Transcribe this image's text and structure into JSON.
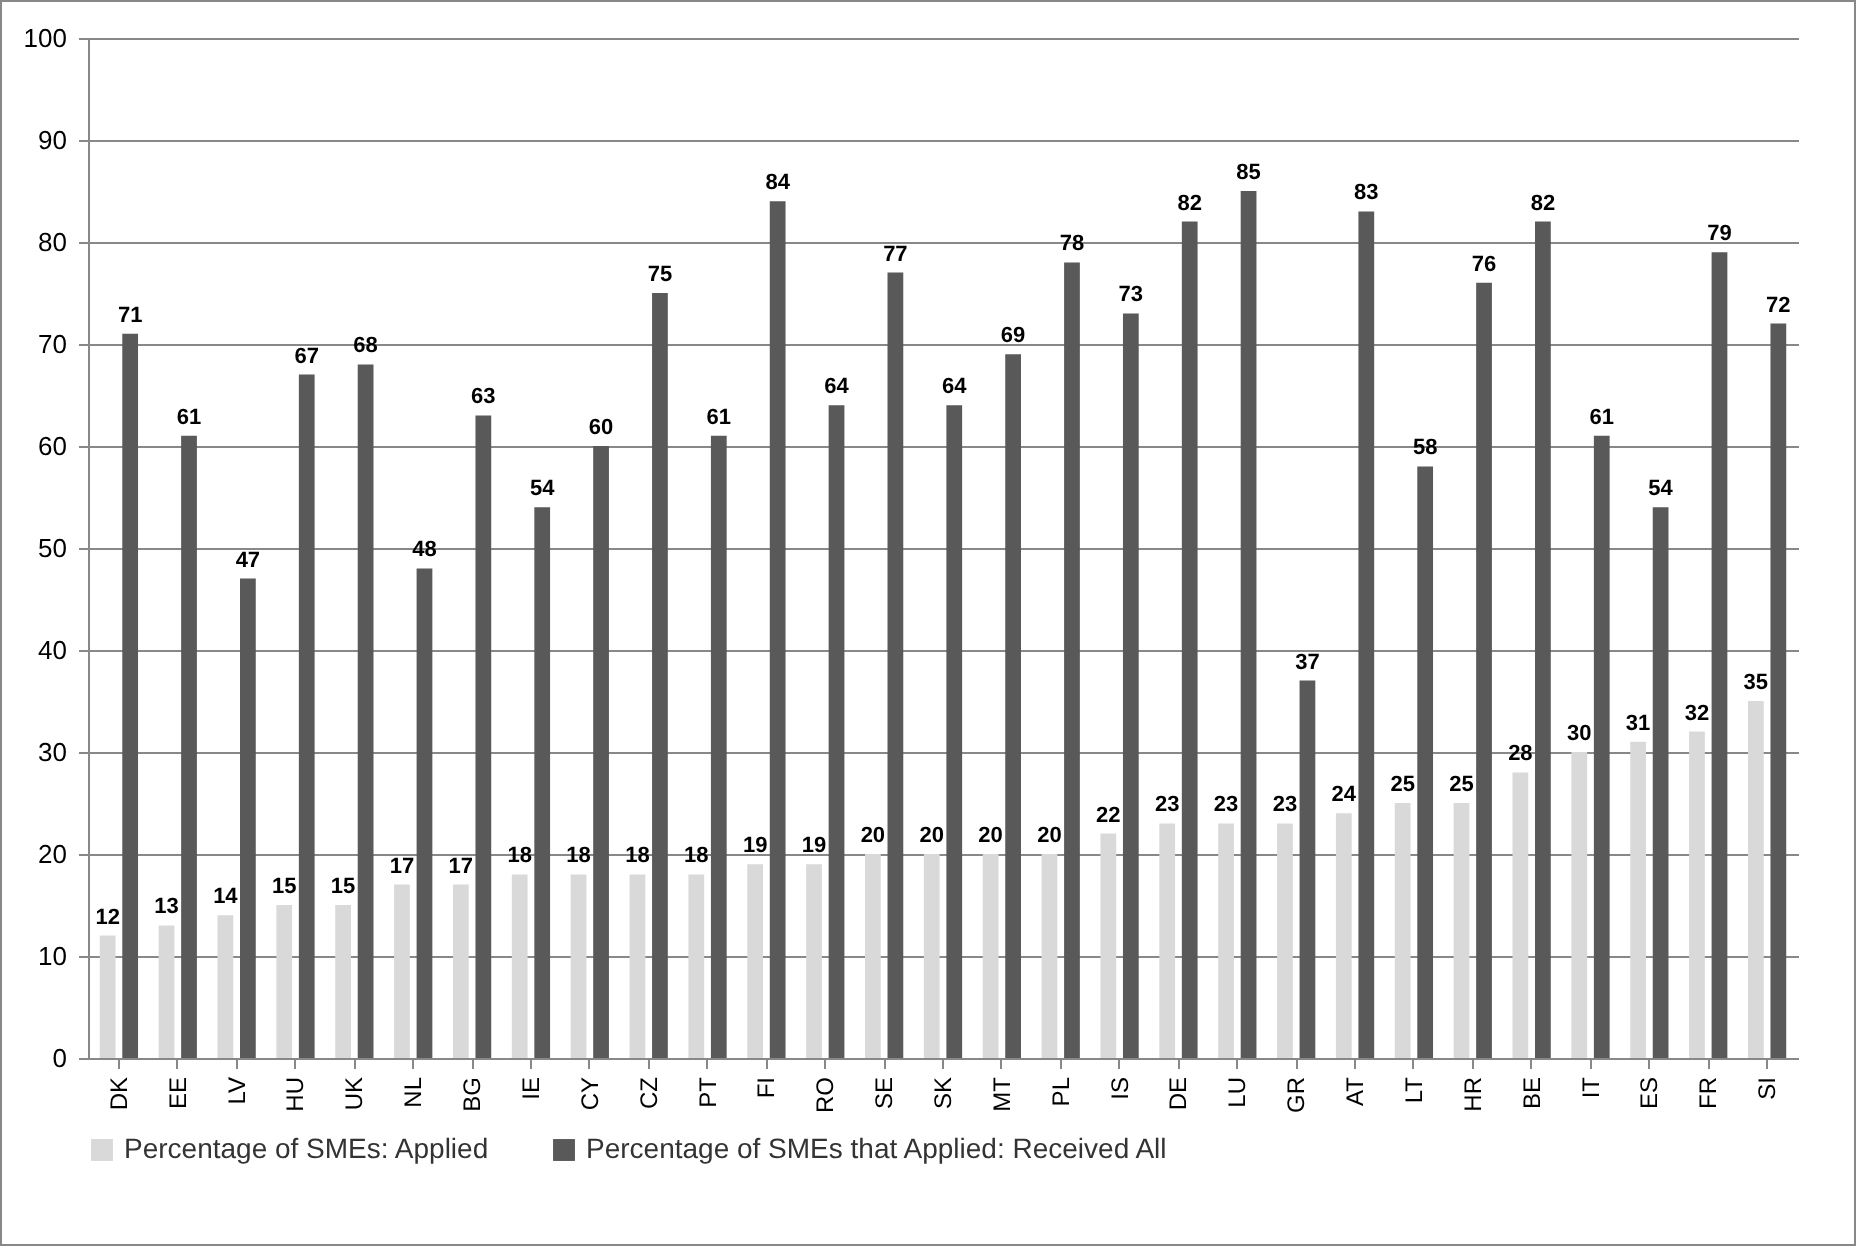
{
  "chart_data": {
    "type": "bar",
    "categories": [
      "DK",
      "EE",
      "LV",
      "HU",
      "UK",
      "NL",
      "BG",
      "IE",
      "CY",
      "CZ",
      "PT",
      "FI",
      "RO",
      "SE",
      "SK",
      "MT",
      "PL",
      "IS",
      "DE",
      "LU",
      "GR",
      "AT",
      "LT",
      "HR",
      "BE",
      "IT",
      "ES",
      "FR",
      "SI"
    ],
    "series": [
      {
        "name": "Percentage of SMEs: Applied",
        "color": "#d9d9d9",
        "values": [
          12,
          13,
          14,
          15,
          15,
          17,
          17,
          18,
          18,
          18,
          18,
          19,
          19,
          20,
          20,
          20,
          20,
          22,
          23,
          23,
          23,
          24,
          25,
          25,
          28,
          30,
          31,
          32,
          35
        ]
      },
      {
        "name": "Percentage of SMEs that Applied: Received All",
        "color": "#595959",
        "values": [
          71,
          61,
          47,
          67,
          68,
          48,
          63,
          54,
          60,
          75,
          61,
          84,
          64,
          77,
          64,
          69,
          78,
          73,
          82,
          85,
          37,
          83,
          58,
          76,
          82,
          61,
          54,
          79,
          72
        ]
      }
    ],
    "ylim": [
      0,
      100
    ],
    "yticks": [
      0,
      10,
      20,
      30,
      40,
      50,
      60,
      70,
      80,
      90,
      100
    ],
    "grid": "y",
    "legend": "bottom",
    "data_labels": true
  }
}
